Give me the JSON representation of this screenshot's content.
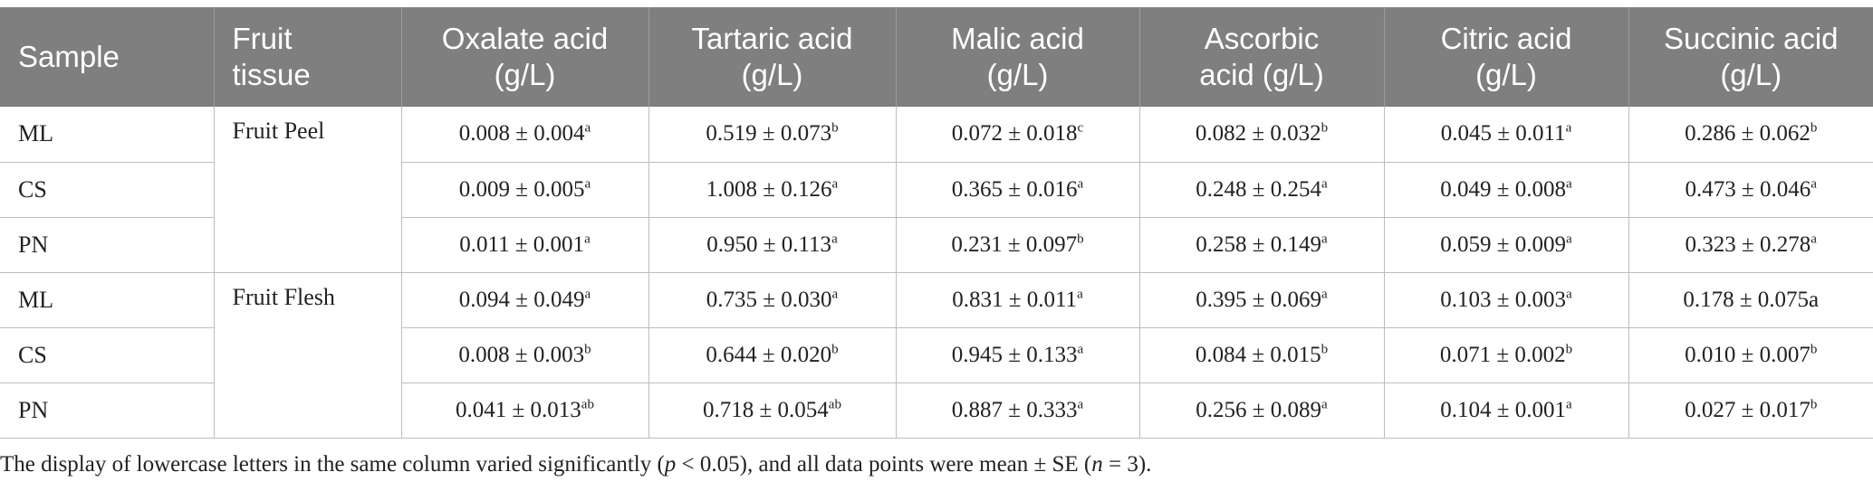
{
  "table": {
    "headers": [
      [
        "Sample"
      ],
      [
        "Fruit",
        "tissue"
      ],
      [
        "Oxalate acid",
        "(g/L)"
      ],
      [
        "Tartaric acid",
        "(g/L)"
      ],
      [
        "Malic acid",
        "(g/L)"
      ],
      [
        "Ascorbic",
        "acid (g/L)"
      ],
      [
        "Citric acid",
        "(g/L)"
      ],
      [
        "Succinic acid",
        "(g/L)"
      ]
    ],
    "groups": [
      {
        "tissue": "Fruit Peel",
        "rows": [
          {
            "sample": "ML",
            "cells": [
              {
                "v": "0.008 ± 0.004",
                "s": "a"
              },
              {
                "v": "0.519 ± 0.073",
                "s": "b"
              },
              {
                "v": "0.072 ± 0.018",
                "s": "c"
              },
              {
                "v": "0.082 ± 0.032",
                "s": "b"
              },
              {
                "v": "0.045 ± 0.011",
                "s": "a"
              },
              {
                "v": "0.286 ± 0.062",
                "s": "b"
              }
            ]
          },
          {
            "sample": "CS",
            "cells": [
              {
                "v": "0.009 ± 0.005",
                "s": "a"
              },
              {
                "v": "1.008 ± 0.126",
                "s": "a"
              },
              {
                "v": "0.365 ± 0.016",
                "s": "a"
              },
              {
                "v": "0.248 ± 0.254",
                "s": "a"
              },
              {
                "v": "0.049 ± 0.008",
                "s": "a"
              },
              {
                "v": "0.473 ± 0.046",
                "s": "a"
              }
            ]
          },
          {
            "sample": "PN",
            "cells": [
              {
                "v": "0.011 ± 0.001",
                "s": "a"
              },
              {
                "v": "0.950 ± 0.113",
                "s": "a"
              },
              {
                "v": "0.231 ± 0.097",
                "s": "b"
              },
              {
                "v": "0.258 ± 0.149",
                "s": "a"
              },
              {
                "v": "0.059 ± 0.009",
                "s": "a"
              },
              {
                "v": "0.323 ± 0.278",
                "s": "a"
              }
            ]
          }
        ]
      },
      {
        "tissue": "Fruit Flesh",
        "rows": [
          {
            "sample": "ML",
            "cells": [
              {
                "v": "0.094 ± 0.049",
                "s": "a"
              },
              {
                "v": "0.735 ± 0.030",
                "s": "a"
              },
              {
                "v": "0.831 ± 0.011",
                "s": "a"
              },
              {
                "v": "0.395 ± 0.069",
                "s": "a"
              },
              {
                "v": "0.103 ± 0.003",
                "s": "a"
              },
              {
                "v": "0.178 ± 0.075a",
                "s": ""
              }
            ]
          },
          {
            "sample": "CS",
            "cells": [
              {
                "v": "0.008 ± 0.003",
                "s": "b"
              },
              {
                "v": "0.644 ± 0.020",
                "s": "b"
              },
              {
                "v": "0.945 ± 0.133",
                "s": "a"
              },
              {
                "v": "0.084 ± 0.015",
                "s": "b"
              },
              {
                "v": "0.071 ± 0.002",
                "s": "b"
              },
              {
                "v": "0.010 ± 0.007",
                "s": "b"
              }
            ]
          },
          {
            "sample": "PN",
            "cells": [
              {
                "v": "0.041 ± 0.013",
                "s": "ab"
              },
              {
                "v": "0.718 ± 0.054",
                "s": "ab"
              },
              {
                "v": "0.887 ± 0.333",
                "s": "a"
              },
              {
                "v": "0.256 ± 0.089",
                "s": "a"
              },
              {
                "v": "0.104 ± 0.001",
                "s": "a"
              },
              {
                "v": "0.027 ± 0.017",
                "s": "b"
              }
            ]
          }
        ]
      }
    ]
  },
  "footnote": {
    "part1": "The display of lowercase letters in the same column varied significantly (",
    "p": "p",
    "part2": " < 0.05), and all data points were mean ± SE (",
    "n": "n",
    "part3": " = 3)."
  }
}
